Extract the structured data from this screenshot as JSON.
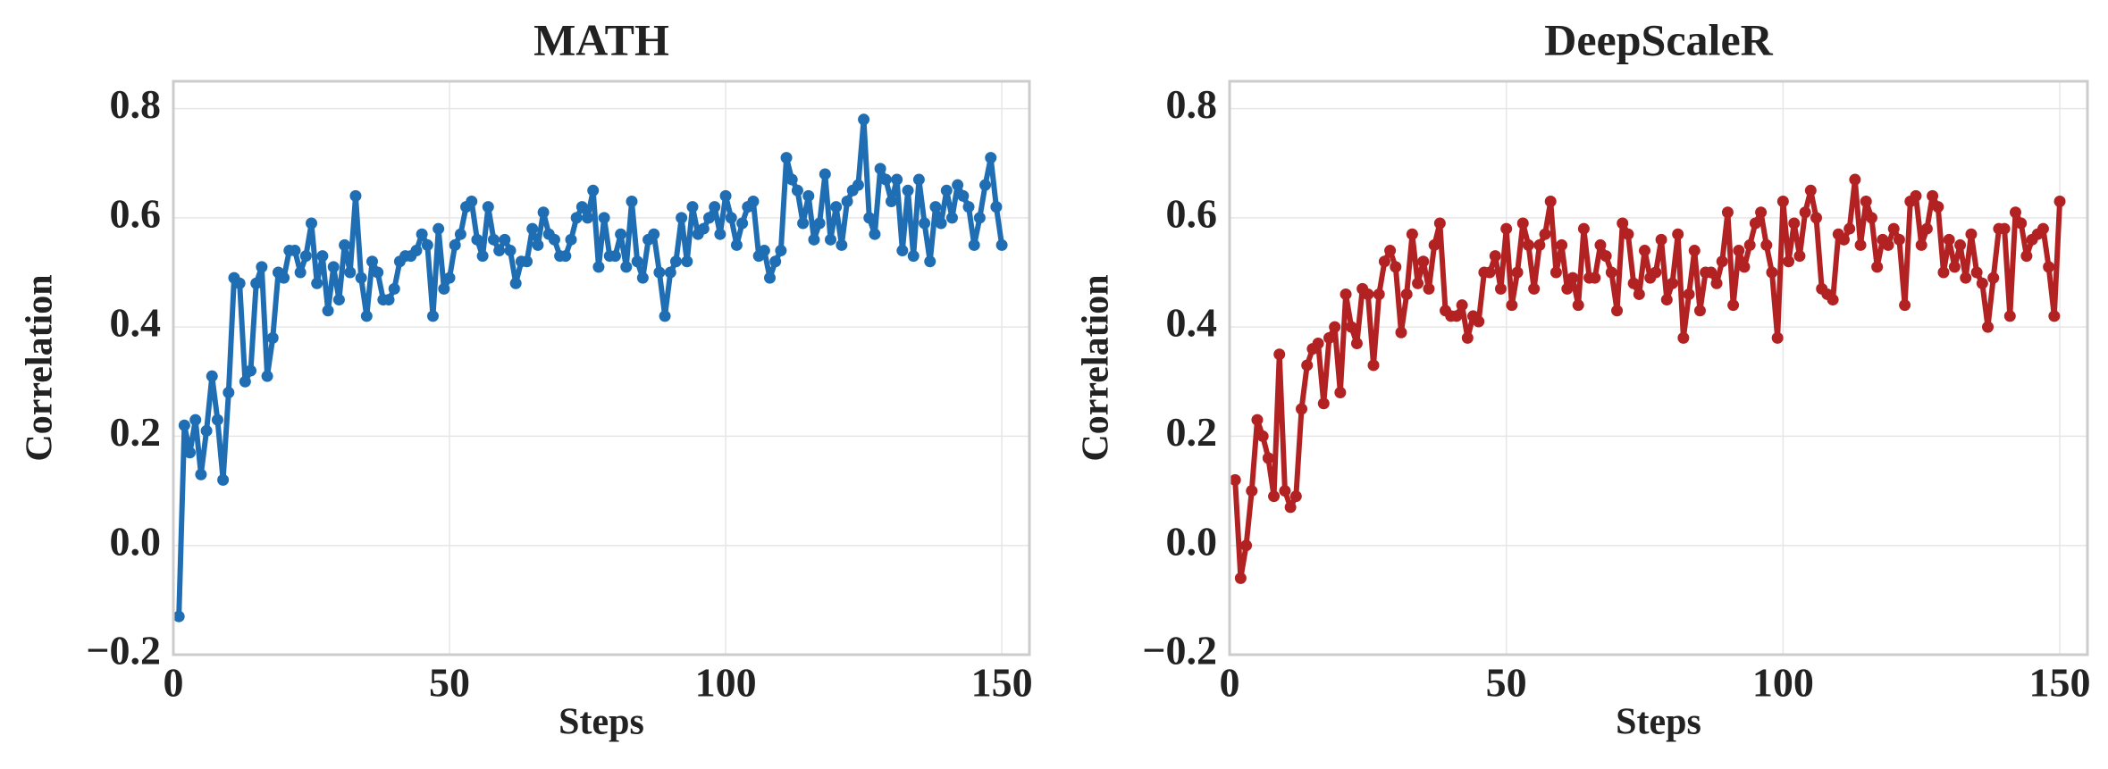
{
  "chart_data": [
    {
      "type": "line",
      "title": "MATH",
      "xlabel": "Steps",
      "ylabel": "Correlation",
      "color": "#1f6eb4",
      "grid": true,
      "xlim": [
        0,
        155
      ],
      "ylim": [
        -0.2,
        0.85
      ],
      "xticks": [
        0,
        50,
        100,
        150
      ],
      "yticks": [
        {
          "value": -0.2,
          "label": "−0.2"
        },
        {
          "value": 0,
          "label": "0.0"
        },
        0.2,
        0.4,
        0.6,
        0.8
      ],
      "x": [
        1,
        2,
        3,
        4,
        5,
        6,
        7,
        8,
        9,
        10,
        11,
        12,
        13,
        14,
        15,
        16,
        17,
        18,
        19,
        20,
        21,
        22,
        23,
        24,
        25,
        26,
        27,
        28,
        29,
        30,
        31,
        32,
        33,
        34,
        35,
        36,
        37,
        38,
        39,
        40,
        41,
        42,
        43,
        44,
        45,
        46,
        47,
        48,
        49,
        50,
        51,
        52,
        53,
        54,
        55,
        56,
        57,
        58,
        59,
        60,
        61,
        62,
        63,
        64,
        65,
        66,
        67,
        68,
        69,
        70,
        71,
        72,
        73,
        74,
        75,
        76,
        77,
        78,
        79,
        80,
        81,
        82,
        83,
        84,
        85,
        86,
        87,
        88,
        89,
        90,
        91,
        92,
        93,
        94,
        95,
        96,
        97,
        98,
        99,
        100,
        101,
        102,
        103,
        104,
        105,
        106,
        107,
        108,
        109,
        110,
        111,
        112,
        113,
        114,
        115,
        116,
        117,
        118,
        119,
        120,
        121,
        122,
        123,
        124,
        125,
        126,
        127,
        128,
        129,
        130,
        131,
        132,
        133,
        134,
        135,
        136,
        137,
        138,
        139,
        140,
        141,
        142,
        143,
        144,
        145,
        146,
        147,
        148,
        149,
        150
      ],
      "values": [
        -0.13,
        0.22,
        0.17,
        0.23,
        0.13,
        0.21,
        0.31,
        0.23,
        0.12,
        0.28,
        0.49,
        0.48,
        0.3,
        0.32,
        0.48,
        0.51,
        0.31,
        0.38,
        0.5,
        0.49,
        0.54,
        0.54,
        0.5,
        0.53,
        0.59,
        0.48,
        0.53,
        0.43,
        0.51,
        0.45,
        0.55,
        0.5,
        0.64,
        0.49,
        0.42,
        0.52,
        0.5,
        0.45,
        0.45,
        0.47,
        0.52,
        0.53,
        0.53,
        0.54,
        0.57,
        0.55,
        0.42,
        0.58,
        0.47,
        0.49,
        0.55,
        0.57,
        0.62,
        0.63,
        0.56,
        0.53,
        0.62,
        0.56,
        0.54,
        0.56,
        0.54,
        0.48,
        0.52,
        0.52,
        0.58,
        0.55,
        0.61,
        0.57,
        0.56,
        0.53,
        0.53,
        0.56,
        0.6,
        0.62,
        0.6,
        0.65,
        0.51,
        0.6,
        0.53,
        0.53,
        0.57,
        0.51,
        0.63,
        0.52,
        0.49,
        0.56,
        0.57,
        0.5,
        0.42,
        0.5,
        0.52,
        0.6,
        0.52,
        0.62,
        0.57,
        0.58,
        0.6,
        0.62,
        0.57,
        0.64,
        0.6,
        0.55,
        0.59,
        0.62,
        0.63,
        0.53,
        0.54,
        0.49,
        0.52,
        0.54,
        0.71,
        0.67,
        0.65,
        0.59,
        0.64,
        0.56,
        0.59,
        0.68,
        0.56,
        0.62,
        0.55,
        0.63,
        0.65,
        0.66,
        0.78,
        0.6,
        0.57,
        0.69,
        0.67,
        0.63,
        0.67,
        0.54,
        0.65,
        0.53,
        0.67,
        0.59,
        0.52,
        0.62,
        0.59,
        0.65,
        0.6,
        0.66,
        0.64,
        0.62,
        0.55,
        0.6,
        0.66,
        0.71,
        0.62,
        0.55
      ]
    },
    {
      "type": "line",
      "title": "DeepScaleR",
      "xlabel": "Steps",
      "ylabel": "Correlation",
      "color": "#b22222",
      "grid": true,
      "xlim": [
        0,
        155
      ],
      "ylim": [
        -0.2,
        0.85
      ],
      "xticks": [
        0,
        50,
        100,
        150
      ],
      "yticks": [
        {
          "value": -0.2,
          "label": "−0.2"
        },
        {
          "value": 0,
          "label": "0.0"
        },
        0.2,
        0.4,
        0.6,
        0.8
      ],
      "x": [
        1,
        2,
        3,
        4,
        5,
        6,
        7,
        8,
        9,
        10,
        11,
        12,
        13,
        14,
        15,
        16,
        17,
        18,
        19,
        20,
        21,
        22,
        23,
        24,
        25,
        26,
        27,
        28,
        29,
        30,
        31,
        32,
        33,
        34,
        35,
        36,
        37,
        38,
        39,
        40,
        41,
        42,
        43,
        44,
        45,
        46,
        47,
        48,
        49,
        50,
        51,
        52,
        53,
        54,
        55,
        56,
        57,
        58,
        59,
        60,
        61,
        62,
        63,
        64,
        65,
        66,
        67,
        68,
        69,
        70,
        71,
        72,
        73,
        74,
        75,
        76,
        77,
        78,
        79,
        80,
        81,
        82,
        83,
        84,
        85,
        86,
        87,
        88,
        89,
        90,
        91,
        92,
        93,
        94,
        95,
        96,
        97,
        98,
        99,
        100,
        101,
        102,
        103,
        104,
        105,
        106,
        107,
        108,
        109,
        110,
        111,
        112,
        113,
        114,
        115,
        116,
        117,
        118,
        119,
        120,
        121,
        122,
        123,
        124,
        125,
        126,
        127,
        128,
        129,
        130,
        131,
        132,
        133,
        134,
        135,
        136,
        137,
        138,
        139,
        140,
        141,
        142,
        143,
        144,
        145,
        146,
        147,
        148,
        149,
        150
      ],
      "values": [
        0.12,
        -0.06,
        0.0,
        0.1,
        0.23,
        0.2,
        0.16,
        0.09,
        0.35,
        0.1,
        0.07,
        0.09,
        0.25,
        0.33,
        0.36,
        0.37,
        0.26,
        0.38,
        0.4,
        0.28,
        0.46,
        0.4,
        0.37,
        0.47,
        0.46,
        0.33,
        0.46,
        0.52,
        0.54,
        0.51,
        0.39,
        0.46,
        0.57,
        0.48,
        0.52,
        0.47,
        0.55,
        0.59,
        0.43,
        0.42,
        0.42,
        0.44,
        0.38,
        0.42,
        0.41,
        0.5,
        0.5,
        0.53,
        0.47,
        0.58,
        0.44,
        0.5,
        0.59,
        0.55,
        0.47,
        0.55,
        0.57,
        0.63,
        0.5,
        0.55,
        0.47,
        0.49,
        0.44,
        0.58,
        0.49,
        0.49,
        0.55,
        0.53,
        0.5,
        0.43,
        0.59,
        0.57,
        0.48,
        0.46,
        0.54,
        0.49,
        0.5,
        0.56,
        0.45,
        0.48,
        0.57,
        0.38,
        0.46,
        0.54,
        0.43,
        0.5,
        0.5,
        0.48,
        0.52,
        0.61,
        0.44,
        0.54,
        0.51,
        0.55,
        0.59,
        0.61,
        0.55,
        0.5,
        0.38,
        0.63,
        0.52,
        0.59,
        0.53,
        0.61,
        0.65,
        0.6,
        0.47,
        0.46,
        0.45,
        0.57,
        0.56,
        0.58,
        0.67,
        0.55,
        0.63,
        0.6,
        0.51,
        0.56,
        0.55,
        0.58,
        0.56,
        0.44,
        0.63,
        0.64,
        0.55,
        0.58,
        0.64,
        0.62,
        0.5,
        0.56,
        0.51,
        0.55,
        0.49,
        0.57,
        0.5,
        0.48,
        0.4,
        0.49,
        0.58,
        0.58,
        0.42,
        0.61,
        0.59,
        0.53,
        0.56,
        0.57,
        0.58,
        0.51,
        0.42,
        0.63
      ]
    }
  ]
}
